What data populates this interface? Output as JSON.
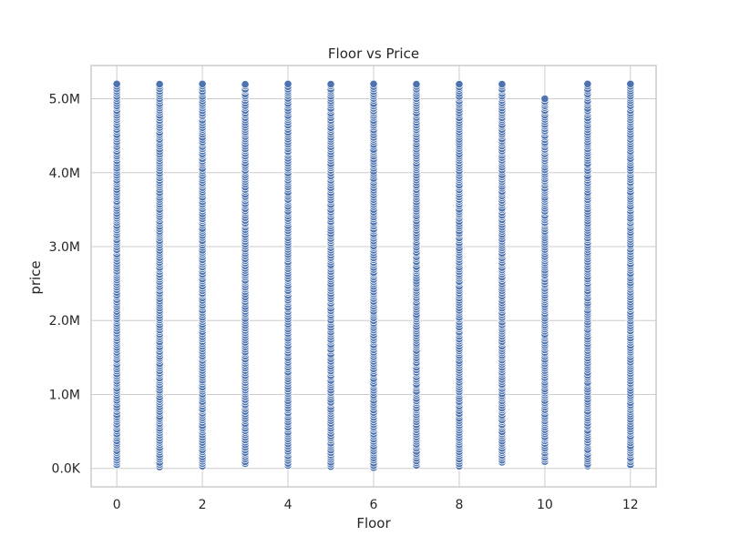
{
  "chart_data": {
    "type": "scatter",
    "title": "Floor vs Price",
    "xlabel": "Floor",
    "ylabel": "price",
    "xlim": [
      -0.6,
      12.6
    ],
    "ylim": [
      -250000,
      5450000
    ],
    "x_ticks": [
      0,
      2,
      4,
      6,
      8,
      10,
      12
    ],
    "x_tick_labels": [
      "0",
      "2",
      "4",
      "6",
      "8",
      "10",
      "12"
    ],
    "y_ticks": [
      0,
      1000000,
      2000000,
      3000000,
      4000000,
      5000000
    ],
    "y_tick_labels": [
      "0.0K",
      "1.0M",
      "2.0M",
      "3.0M",
      "4.0M",
      "5.0M"
    ],
    "grid": true,
    "legend": "none",
    "marker_color": "#4c72b0",
    "series": [
      {
        "floors": [
          0,
          1,
          2,
          3,
          4,
          5,
          6,
          7,
          8,
          9,
          10,
          11,
          12
        ],
        "price_min": [
          50000,
          20000,
          30000,
          60000,
          40000,
          20000,
          10000,
          40000,
          30000,
          80000,
          90000,
          30000,
          50000
        ],
        "price_max": [
          5200000,
          5200000,
          5200000,
          5200000,
          5200000,
          5200000,
          5200000,
          5200000,
          5200000,
          5200000,
          5000000,
          5200000,
          5200000
        ],
        "points_per_floor": 160
      }
    ]
  }
}
